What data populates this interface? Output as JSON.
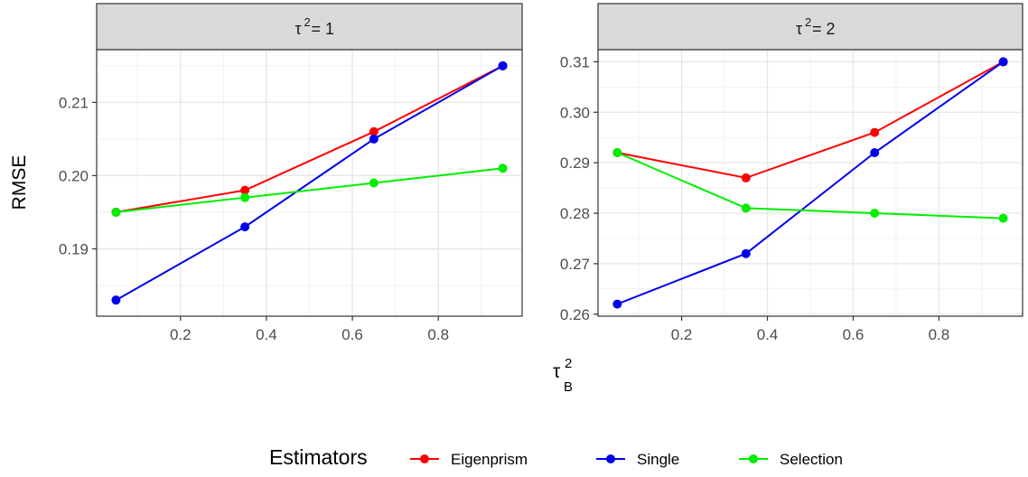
{
  "chart_data": {
    "type": "line",
    "ylabel": "RMSE",
    "xlabel": {
      "base": "τ",
      "sup": "2",
      "sub": "B"
    },
    "legend": {
      "title": "Estimators",
      "position": "bottom",
      "entries": [
        "Eigenprism",
        "Single",
        "Selection"
      ]
    },
    "colors": {
      "Eigenprism": "#ff0000",
      "Single": "#0000ee",
      "Selection": "#00ee00"
    },
    "grid": true,
    "panels": [
      {
        "strip": {
          "base": "τ",
          "sup": "2",
          "rest": " = 1"
        },
        "x": [
          0.05,
          0.35,
          0.65,
          0.95
        ],
        "xlim": [
          0.005,
          0.995
        ],
        "xticks": [
          "0.2",
          "0.4",
          "0.6",
          "0.8"
        ],
        "ylim": [
          0.1808,
          0.2172
        ],
        "yticks": [
          "0.19",
          "0.20",
          "0.21"
        ],
        "series": [
          {
            "name": "Eigenprism",
            "values": [
              0.195,
              0.198,
              0.206,
              0.215
            ]
          },
          {
            "name": "Single",
            "values": [
              0.183,
              0.193,
              0.205,
              0.215
            ]
          },
          {
            "name": "Selection",
            "values": [
              0.195,
              0.197,
              0.199,
              0.201
            ]
          }
        ]
      },
      {
        "strip": {
          "base": "τ",
          "sup": "2",
          "rest": " = 2"
        },
        "x": [
          0.05,
          0.35,
          0.65,
          0.95
        ],
        "xlim": [
          0.005,
          0.995
        ],
        "xticks": [
          "0.2",
          "0.4",
          "0.6",
          "0.8"
        ],
        "ylim": [
          0.2596,
          0.3124
        ],
        "yticks": [
          "0.26",
          "0.27",
          "0.28",
          "0.29",
          "0.30",
          "0.31"
        ],
        "series": [
          {
            "name": "Eigenprism",
            "values": [
              0.292,
              0.287,
              0.296,
              0.31
            ]
          },
          {
            "name": "Single",
            "values": [
              0.262,
              0.272,
              0.292,
              0.31
            ]
          },
          {
            "name": "Selection",
            "values": [
              0.292,
              0.281,
              0.28,
              0.279
            ]
          }
        ]
      }
    ]
  }
}
